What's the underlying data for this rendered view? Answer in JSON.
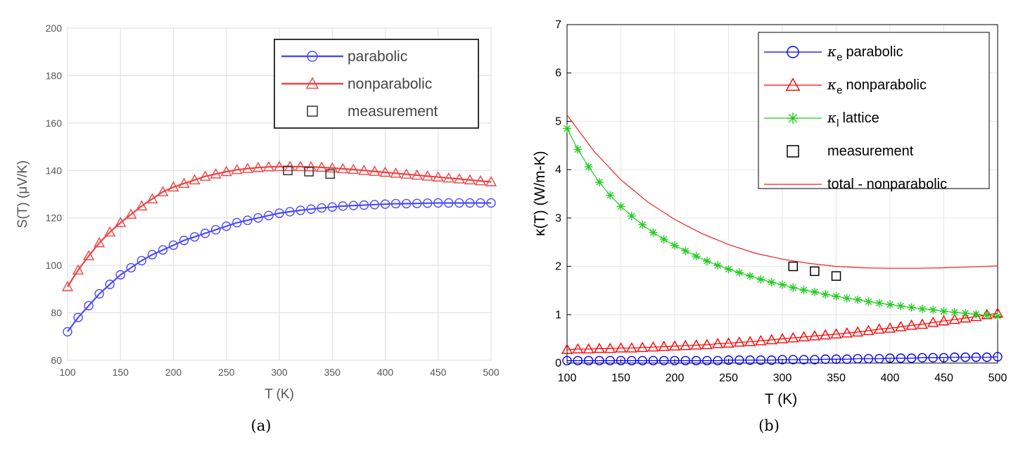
{
  "chart_data": [
    {
      "type": "line",
      "caption": "(a)",
      "xlabel": "T (K)",
      "ylabel": "S(T) (μV/K)",
      "xlim": [
        100,
        500
      ],
      "ylim": [
        60,
        200
      ],
      "xticks": [
        "100",
        "150",
        "200",
        "250",
        "300",
        "350",
        "400",
        "450",
        "500"
      ],
      "yticks": [
        "60",
        "80",
        "100",
        "120",
        "140",
        "160",
        "180",
        "200"
      ],
      "grid": true,
      "legend_position": "top-right",
      "series": [
        {
          "name": "parabolic",
          "color": "#4a4aff",
          "marker": "circle",
          "x": [
            100,
            110,
            120,
            130,
            140,
            150,
            160,
            170,
            180,
            190,
            200,
            210,
            220,
            230,
            240,
            250,
            260,
            270,
            280,
            290,
            300,
            310,
            320,
            330,
            340,
            350,
            360,
            370,
            380,
            390,
            400,
            410,
            420,
            430,
            440,
            450,
            460,
            470,
            480,
            490,
            500
          ],
          "y": [
            72,
            78,
            83,
            88,
            92,
            96,
            99,
            102,
            104.5,
            106.5,
            108.5,
            110.5,
            112,
            113.5,
            115,
            116.5,
            118,
            119,
            120,
            121,
            122,
            122.6,
            123.2,
            123.7,
            124.2,
            124.6,
            125,
            125.2,
            125.4,
            125.6,
            125.8,
            126,
            126,
            126.1,
            126.2,
            126.3,
            126.3,
            126.3,
            126.3,
            126.3,
            126.3
          ]
        },
        {
          "name": "nonparabolic",
          "color": "#ee4444",
          "marker": "triangle",
          "x": [
            100,
            110,
            120,
            130,
            140,
            150,
            160,
            170,
            180,
            190,
            200,
            210,
            220,
            230,
            240,
            250,
            260,
            270,
            280,
            290,
            300,
            310,
            320,
            330,
            340,
            350,
            360,
            370,
            380,
            390,
            400,
            410,
            420,
            430,
            440,
            450,
            460,
            470,
            480,
            490,
            500
          ],
          "y": [
            91,
            98,
            104,
            109.5,
            114,
            118,
            121.5,
            125,
            128,
            131,
            133,
            134.5,
            136,
            137.5,
            138.5,
            139.5,
            140.3,
            140.8,
            141.2,
            141.5,
            141.6,
            141.6,
            141.6,
            141.5,
            141.3,
            141,
            140.7,
            140.4,
            140,
            139.6,
            139.2,
            138.8,
            138.4,
            138,
            137.6,
            137.2,
            136.8,
            136.4,
            136,
            135.6,
            135.2
          ]
        },
        {
          "name": "measurement",
          "color": "#333333",
          "marker": "square",
          "x": [
            308,
            328,
            348
          ],
          "y": [
            140,
            139.5,
            138.5
          ]
        }
      ]
    },
    {
      "type": "line",
      "caption": "(b)",
      "xlabel": "T (K)",
      "ylabel": "κ(T) (W/m-K)",
      "xlim": [
        100,
        500
      ],
      "ylim": [
        0,
        7
      ],
      "xticks": [
        "100",
        "150",
        "200",
        "250",
        "300",
        "350",
        "400",
        "450",
        "500"
      ],
      "yticks": [
        "0",
        "1",
        "2",
        "3",
        "4",
        "5",
        "6",
        "7"
      ],
      "grid": true,
      "legend_position": "top-right",
      "series": [
        {
          "name": "κe parabolic",
          "legend_symbol": "κ",
          "legend_sub": "e",
          "legend_text": "parabolic",
          "color": "#0000ff",
          "marker": "circle",
          "x": [
            100,
            110,
            120,
            130,
            140,
            150,
            160,
            170,
            180,
            190,
            200,
            210,
            220,
            230,
            240,
            250,
            260,
            270,
            280,
            290,
            300,
            310,
            320,
            330,
            340,
            350,
            360,
            370,
            380,
            390,
            400,
            410,
            420,
            430,
            440,
            450,
            460,
            470,
            480,
            490,
            500
          ],
          "y": [
            0.05,
            0.05,
            0.05,
            0.05,
            0.05,
            0.05,
            0.05,
            0.05,
            0.05,
            0.05,
            0.05,
            0.05,
            0.05,
            0.05,
            0.05,
            0.06,
            0.06,
            0.06,
            0.06,
            0.06,
            0.07,
            0.07,
            0.07,
            0.07,
            0.08,
            0.08,
            0.08,
            0.09,
            0.09,
            0.09,
            0.1,
            0.1,
            0.1,
            0.11,
            0.11,
            0.11,
            0.12,
            0.12,
            0.12,
            0.12,
            0.13
          ]
        },
        {
          "name": "κe nonparabolic",
          "legend_symbol": "κ",
          "legend_sub": "e",
          "legend_text": "nonparabolic",
          "color": "#ff0000",
          "marker": "triangle",
          "x": [
            100,
            110,
            120,
            130,
            140,
            150,
            160,
            170,
            180,
            190,
            200,
            210,
            220,
            230,
            240,
            250,
            260,
            270,
            280,
            290,
            300,
            310,
            320,
            330,
            340,
            350,
            360,
            370,
            380,
            390,
            400,
            410,
            420,
            430,
            440,
            450,
            460,
            470,
            480,
            490,
            500
          ],
          "y": [
            0.28,
            0.29,
            0.29,
            0.3,
            0.3,
            0.31,
            0.31,
            0.32,
            0.33,
            0.34,
            0.35,
            0.36,
            0.37,
            0.38,
            0.4,
            0.41,
            0.43,
            0.44,
            0.46,
            0.48,
            0.5,
            0.52,
            0.54,
            0.56,
            0.58,
            0.6,
            0.62,
            0.64,
            0.67,
            0.7,
            0.72,
            0.75,
            0.78,
            0.8,
            0.84,
            0.87,
            0.9,
            0.93,
            0.96,
            1.0,
            1.03
          ]
        },
        {
          "name": "κl lattice",
          "legend_symbol": "κ",
          "legend_sub": "l",
          "legend_text": "lattice",
          "color": "#22cc22",
          "marker": "star",
          "x": [
            100,
            110,
            120,
            130,
            140,
            150,
            160,
            170,
            180,
            190,
            200,
            210,
            220,
            230,
            240,
            250,
            260,
            270,
            280,
            290,
            300,
            310,
            320,
            330,
            340,
            350,
            360,
            370,
            380,
            390,
            400,
            410,
            420,
            430,
            440,
            450,
            460,
            470,
            480,
            490,
            500
          ],
          "y": [
            4.85,
            4.42,
            4.06,
            3.74,
            3.47,
            3.24,
            3.04,
            2.86,
            2.7,
            2.56,
            2.43,
            2.32,
            2.21,
            2.11,
            2.02,
            1.94,
            1.87,
            1.8,
            1.73,
            1.67,
            1.62,
            1.56,
            1.51,
            1.47,
            1.42,
            1.38,
            1.34,
            1.31,
            1.27,
            1.24,
            1.21,
            1.18,
            1.15,
            1.12,
            1.1,
            1.07,
            1.05,
            1.03,
            1.01,
            0.99,
            0.97
          ]
        },
        {
          "name": "measurement",
          "legend_symbol": "",
          "legend_sub": "",
          "legend_text": "measurement",
          "color": "#000000",
          "marker": "square",
          "x": [
            310,
            330,
            350
          ],
          "y": [
            2.0,
            1.9,
            1.8
          ]
        },
        {
          "name": "total - nonparabolic",
          "legend_symbol": "",
          "legend_sub": "",
          "legend_text": "total - nonparabolic",
          "color": "#ee2222",
          "marker": "none",
          "x": [
            100,
            125,
            150,
            175,
            200,
            225,
            250,
            275,
            300,
            325,
            350,
            375,
            400,
            425,
            450,
            475,
            500
          ],
          "y": [
            5.13,
            4.38,
            3.79,
            3.33,
            2.97,
            2.68,
            2.45,
            2.27,
            2.15,
            2.06,
            2.0,
            1.97,
            1.96,
            1.96,
            1.97,
            1.99,
            2.01
          ]
        }
      ]
    }
  ]
}
